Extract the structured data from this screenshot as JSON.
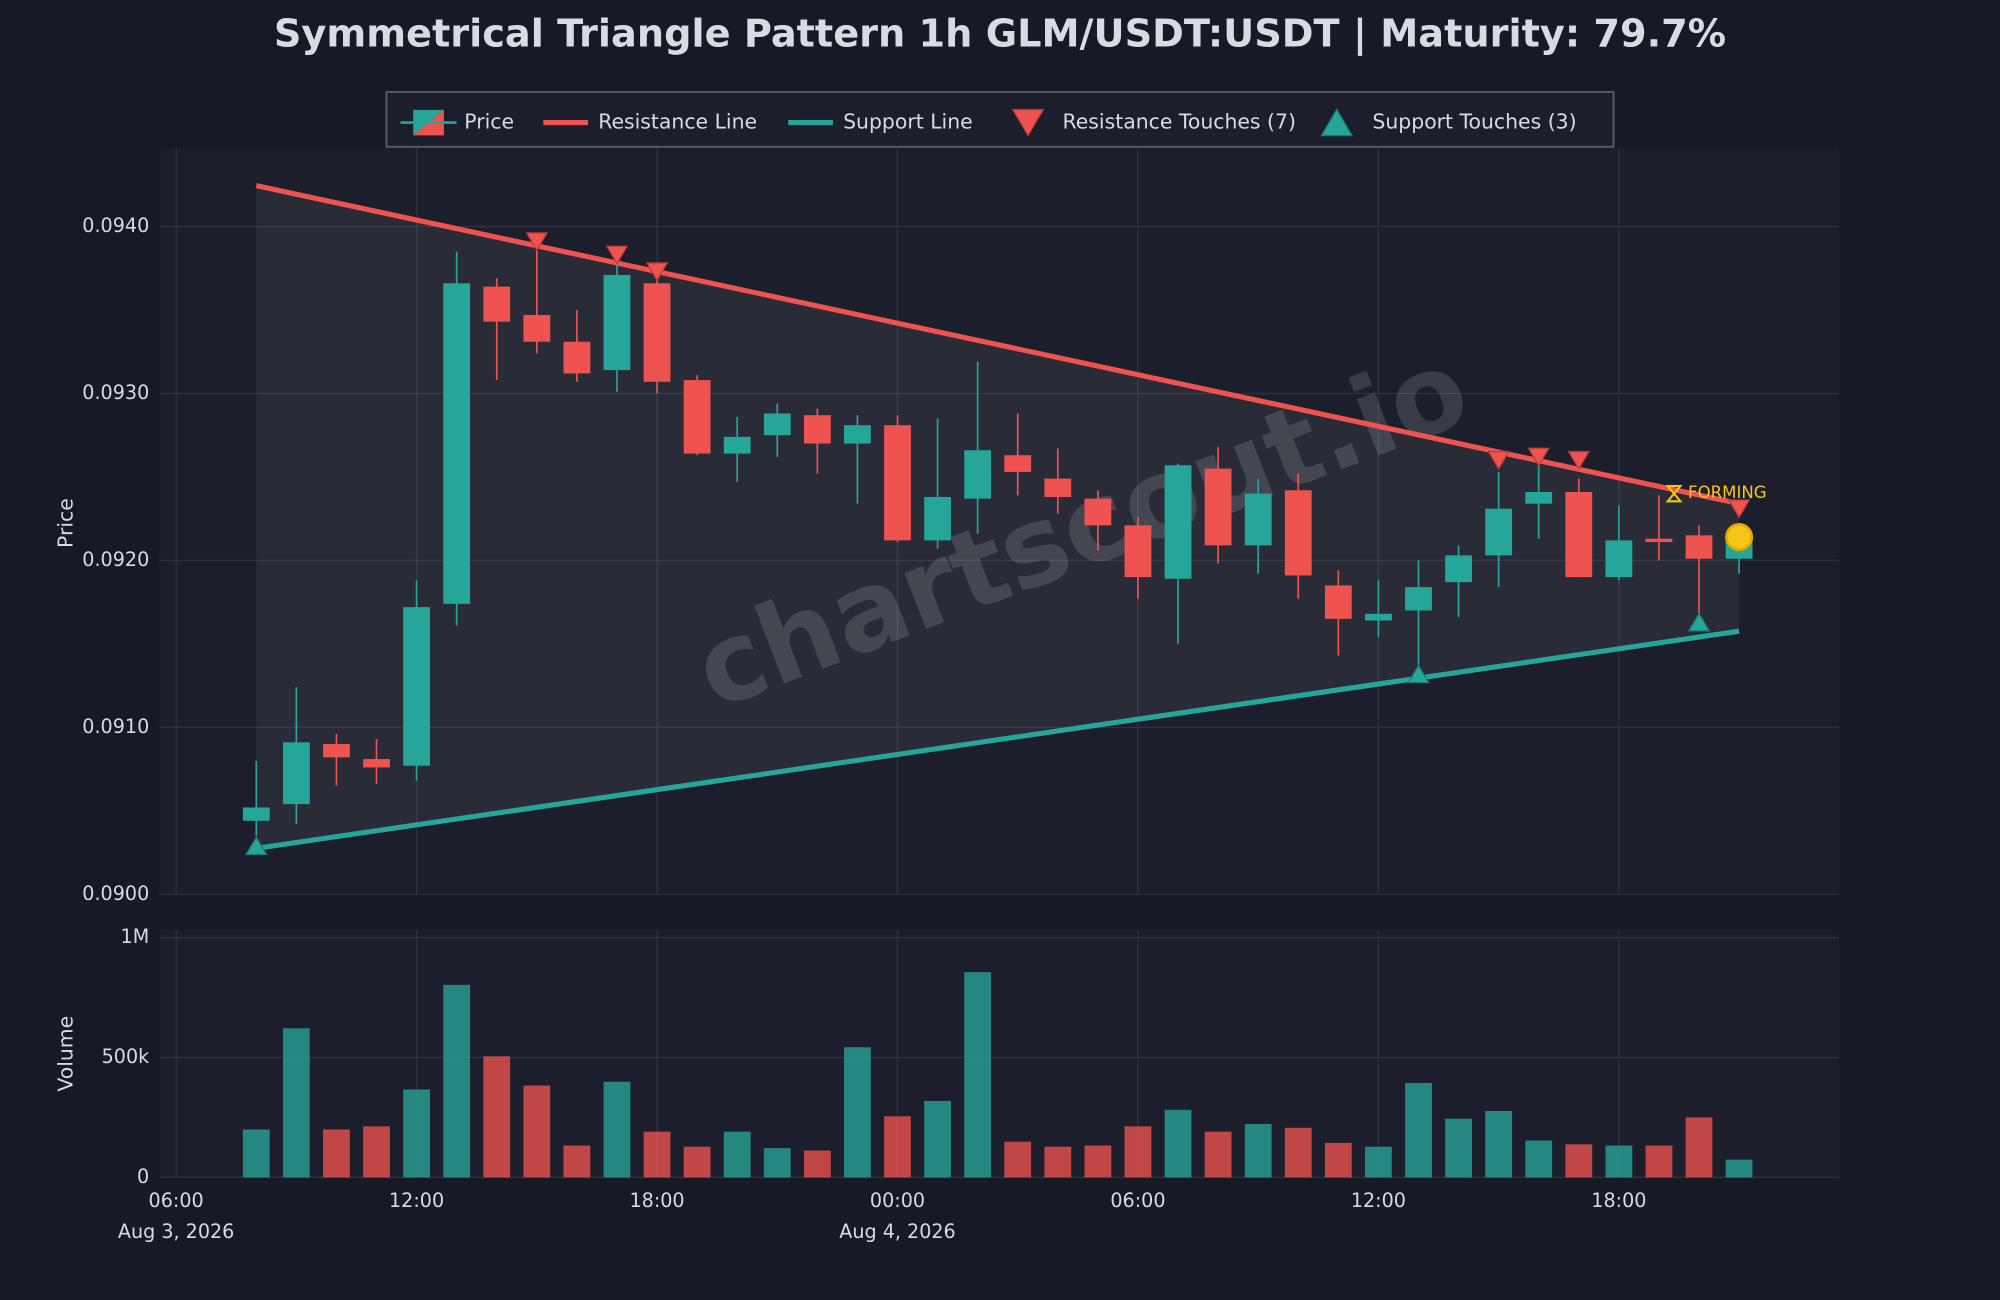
{
  "chart_data": [
    {
      "type": "candlestick",
      "title": "Symmetrical Triangle Pattern 1h GLM/USDT:USDT | Maturity: 79.7%",
      "name": "Price",
      "ylabel": "Price",
      "up_color": "#26a69a",
      "down_color": "#ef5350",
      "legend": "upper center",
      "grid": true,
      "watermark": "chartscout.io",
      "x": [
        "2026-08-03 08:00",
        "2026-08-03 09:00",
        "2026-08-03 10:00",
        "2026-08-03 11:00",
        "2026-08-03 12:00",
        "2026-08-03 13:00",
        "2026-08-03 14:00",
        "2026-08-03 15:00",
        "2026-08-03 16:00",
        "2026-08-03 17:00",
        "2026-08-03 18:00",
        "2026-08-03 19:00",
        "2026-08-03 20:00",
        "2026-08-03 21:00",
        "2026-08-03 22:00",
        "2026-08-03 23:00",
        "2026-08-04 00:00",
        "2026-08-04 01:00",
        "2026-08-04 02:00",
        "2026-08-04 03:00",
        "2026-08-04 04:00",
        "2026-08-04 05:00",
        "2026-08-04 06:00",
        "2026-08-04 07:00",
        "2026-08-04 08:00",
        "2026-08-04 09:00",
        "2026-08-04 10:00",
        "2026-08-04 11:00",
        "2026-08-04 12:00",
        "2026-08-04 13:00",
        "2026-08-04 14:00",
        "2026-08-04 15:00",
        "2026-08-04 16:00",
        "2026-08-04 17:00",
        "2026-08-04 18:00",
        "2026-08-04 19:00",
        "2026-08-04 20:00",
        "2026-08-04 21:00"
      ],
      "open": [
        0.09044,
        0.09054,
        0.0909,
        0.09081,
        0.09077,
        0.09174,
        0.09364,
        0.09347,
        0.09331,
        0.09314,
        0.09366,
        0.09308,
        0.09264,
        0.09275,
        0.09287,
        0.0927,
        0.09281,
        0.09212,
        0.09237,
        0.09263,
        0.09249,
        0.09237,
        0.09221,
        0.09189,
        0.09255,
        0.09209,
        0.09242,
        0.09185,
        0.09164,
        0.0917,
        0.09187,
        0.09203,
        0.09234,
        0.09241,
        0.0919,
        0.09213,
        0.09215,
        0.09201
      ],
      "high": [
        0.0908,
        0.09124,
        0.09096,
        0.09093,
        0.09188,
        0.09385,
        0.09369,
        0.09391,
        0.0935,
        0.09379,
        0.09374,
        0.09311,
        0.09286,
        0.09294,
        0.09291,
        0.09287,
        0.09287,
        0.09285,
        0.09319,
        0.09288,
        0.09267,
        0.09242,
        0.09226,
        0.09258,
        0.09268,
        0.09249,
        0.09252,
        0.09194,
        0.09188,
        0.092,
        0.09209,
        0.09253,
        0.09259,
        0.09249,
        0.09233,
        0.09239,
        0.09221,
        0.0922
      ],
      "low": [
        0.09035,
        0.09042,
        0.09065,
        0.09066,
        0.09068,
        0.09161,
        0.09308,
        0.09324,
        0.09307,
        0.09301,
        0.093,
        0.09263,
        0.09247,
        0.09262,
        0.09252,
        0.09234,
        0.09211,
        0.09207,
        0.09216,
        0.09239,
        0.09228,
        0.09206,
        0.09177,
        0.0915,
        0.09198,
        0.09192,
        0.09177,
        0.09143,
        0.09154,
        0.09132,
        0.09166,
        0.09184,
        0.09213,
        0.0919,
        0.09188,
        0.092,
        0.09167,
        0.09192
      ],
      "close": [
        0.09052,
        0.09091,
        0.09082,
        0.09076,
        0.09172,
        0.09366,
        0.09343,
        0.09331,
        0.09312,
        0.09371,
        0.09307,
        0.09264,
        0.09274,
        0.09288,
        0.0927,
        0.09281,
        0.09212,
        0.09238,
        0.09266,
        0.09253,
        0.09238,
        0.09221,
        0.0919,
        0.09257,
        0.09209,
        0.0924,
        0.09191,
        0.09165,
        0.09168,
        0.09184,
        0.09203,
        0.09231,
        0.09241,
        0.0919,
        0.09212,
        0.09211,
        0.09201,
        0.09212
      ],
      "lines": [
        {
          "name": "Resistance Line",
          "color": "#ef5350",
          "x": [
            "2026-08-03 08:00",
            "2026-08-04 21:00"
          ],
          "values": [
            0.094245,
            0.09234
          ]
        },
        {
          "name": "Support Line",
          "color": "#26a69a",
          "x": [
            "2026-08-03 08:00",
            "2026-08-04 21:00"
          ],
          "values": [
            0.090275,
            0.091576
          ]
        }
      ],
      "touches": [
        {
          "name": "Resistance Touches (7)",
          "marker": "down",
          "color": "#ef5350",
          "x": [
            "2026-08-03 15:00",
            "2026-08-03 17:00",
            "2026-08-03 18:00",
            "2026-08-04 15:00",
            "2026-08-04 16:00",
            "2026-08-04 17:00",
            "2026-08-04 21:00"
          ],
          "values": [
            0.09391,
            0.09383,
            0.09373,
            0.0926,
            0.09262,
            0.0926,
            0.09231
          ]
        },
        {
          "name": "Support Touches (3)",
          "marker": "up",
          "color": "#26a69a",
          "x": [
            "2026-08-03 08:00",
            "2026-08-04 13:00",
            "2026-08-04 20:00"
          ],
          "values": [
            0.09029,
            0.09132,
            0.09163
          ]
        }
      ],
      "forming": {
        "label": "FORMING",
        "color": "#f5c518",
        "x": "2026-08-04 21:00",
        "value": 0.09214
      },
      "xlim": [
        "2026-08-03 05:35",
        "2026-08-04 23:30"
      ],
      "ylim": [
        0.09,
        0.09447
      ],
      "yticks": [
        {
          "value": 0.09,
          "label": "0.0900"
        },
        {
          "value": 0.091,
          "label": "0.0910"
        },
        {
          "value": 0.092,
          "label": "0.0920"
        },
        {
          "value": 0.093,
          "label": "0.0930"
        },
        {
          "value": 0.094,
          "label": "0.0940"
        }
      ]
    },
    {
      "type": "bar",
      "ylabel": "Volume",
      "x": [
        "2026-08-03 08:00",
        "2026-08-03 09:00",
        "2026-08-03 10:00",
        "2026-08-03 11:00",
        "2026-08-03 12:00",
        "2026-08-03 13:00",
        "2026-08-03 14:00",
        "2026-08-03 15:00",
        "2026-08-03 16:00",
        "2026-08-03 17:00",
        "2026-08-03 18:00",
        "2026-08-03 19:00",
        "2026-08-03 20:00",
        "2026-08-03 21:00",
        "2026-08-03 22:00",
        "2026-08-03 23:00",
        "2026-08-04 00:00",
        "2026-08-04 01:00",
        "2026-08-04 02:00",
        "2026-08-04 03:00",
        "2026-08-04 04:00",
        "2026-08-04 05:00",
        "2026-08-04 06:00",
        "2026-08-04 07:00",
        "2026-08-04 08:00",
        "2026-08-04 09:00",
        "2026-08-04 10:00",
        "2026-08-04 11:00",
        "2026-08-04 12:00",
        "2026-08-04 13:00",
        "2026-08-04 14:00",
        "2026-08-04 15:00",
        "2026-08-04 16:00",
        "2026-08-04 17:00",
        "2026-08-04 18:00",
        "2026-08-04 19:00",
        "2026-08-04 20:00",
        "2026-08-04 21:00"
      ],
      "values": [
        200000,
        622000,
        200000,
        213000,
        367000,
        803000,
        505000,
        383000,
        133000,
        399000,
        191000,
        128000,
        191000,
        122000,
        112000,
        543000,
        255000,
        319000,
        856000,
        149000,
        128000,
        133000,
        213000,
        282000,
        191000,
        223000,
        207000,
        144000,
        128000,
        394000,
        245000,
        277000,
        154000,
        138000,
        133000,
        133000,
        250000,
        74000
      ],
      "xlim": [
        "2026-08-03 05:35",
        "2026-08-04 23:30"
      ],
      "ylim": [
        0,
        1032000
      ],
      "yticks": [
        0,
        {
          "value": 500000,
          "label": "500k"
        },
        {
          "value": 1000000,
          "label": "1M"
        }
      ],
      "xticks": [
        {
          "value": "2026-08-03 06:00",
          "label": "06:00"
        },
        {
          "value": "2026-08-03 12:00",
          "label": "12:00"
        },
        {
          "value": "2026-08-03 18:00",
          "label": "18:00"
        },
        {
          "value": "2026-08-04 00:00",
          "label": "00:00"
        },
        {
          "value": "2026-08-04 06:00",
          "label": "06:00"
        },
        {
          "value": "2026-08-04 12:00",
          "label": "12:00"
        },
        {
          "value": "2026-08-04 18:00",
          "label": "18:00"
        }
      ],
      "xtick_dates": [
        {
          "value": "2026-08-03 06:00",
          "label": "Aug 3, 2026"
        },
        {
          "value": "2026-08-04 00:00",
          "label": "Aug 4, 2026"
        }
      ]
    }
  ]
}
